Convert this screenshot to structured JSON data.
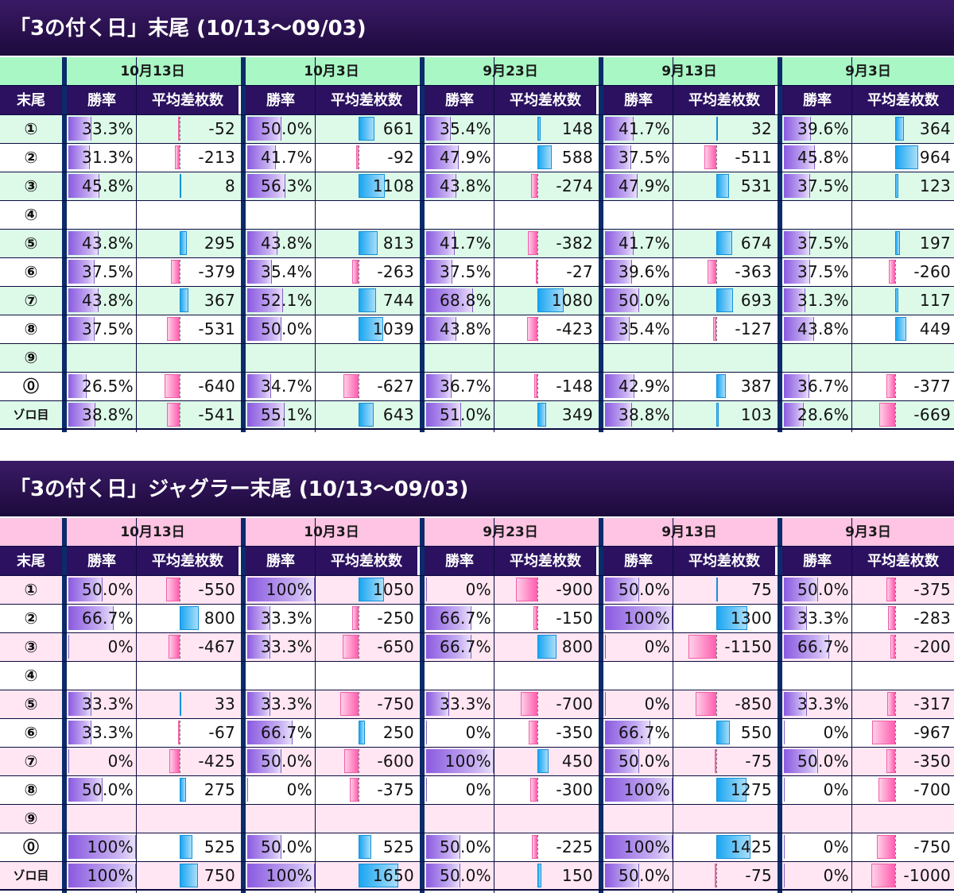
{
  "sections": [
    {
      "title": "「3の付く日」末尾 (10/13～09/03)",
      "theme": {
        "header_bg": "#a9f7c5",
        "stripe_bg": "#ddfae9"
      },
      "column_header": {
        "label": "末尾",
        "win_rate": "勝率",
        "avg_diff": "平均差枚数"
      },
      "dates": [
        "10月13日",
        "10月3日",
        "9月23日",
        "9月13日",
        "9月3日"
      ],
      "rows": [
        {
          "label": "①",
          "win_rates": [
            "33.3%",
            "50.0%",
            "35.4%",
            "41.7%",
            "39.6%"
          ],
          "diffs": [
            -52,
            661,
            148,
            32,
            364
          ]
        },
        {
          "label": "②",
          "win_rates": [
            "31.3%",
            "41.7%",
            "47.9%",
            "37.5%",
            "45.8%"
          ],
          "diffs": [
            -213,
            -92,
            588,
            -511,
            964
          ]
        },
        {
          "label": "③",
          "win_rates": [
            "45.8%",
            "56.3%",
            "43.8%",
            "47.9%",
            "37.5%"
          ],
          "diffs": [
            8,
            1108,
            -274,
            531,
            123
          ]
        },
        {
          "label": "④",
          "win_rates": [
            "",
            "",
            "",
            "",
            ""
          ],
          "diffs": [
            null,
            null,
            null,
            null,
            null
          ]
        },
        {
          "label": "⑤",
          "win_rates": [
            "43.8%",
            "43.8%",
            "41.7%",
            "41.7%",
            "37.5%"
          ],
          "diffs": [
            295,
            813,
            -382,
            674,
            197
          ]
        },
        {
          "label": "⑥",
          "win_rates": [
            "37.5%",
            "35.4%",
            "37.5%",
            "39.6%",
            "37.5%"
          ],
          "diffs": [
            -379,
            -263,
            -27,
            -363,
            -260
          ]
        },
        {
          "label": "⑦",
          "win_rates": [
            "43.8%",
            "52.1%",
            "68.8%",
            "50.0%",
            "31.3%"
          ],
          "diffs": [
            367,
            744,
            1080,
            693,
            117
          ]
        },
        {
          "label": "⑧",
          "win_rates": [
            "37.5%",
            "50.0%",
            "43.8%",
            "35.4%",
            "43.8%"
          ],
          "diffs": [
            -531,
            1039,
            -423,
            -127,
            449
          ]
        },
        {
          "label": "⑨",
          "win_rates": [
            "",
            "",
            "",
            "",
            ""
          ],
          "diffs": [
            null,
            null,
            null,
            null,
            null
          ]
        },
        {
          "label": "⓪",
          "win_rates": [
            "26.5%",
            "34.7%",
            "36.7%",
            "42.9%",
            "36.7%"
          ],
          "diffs": [
            -640,
            -627,
            -148,
            387,
            -377
          ]
        },
        {
          "label": "ゾロ目",
          "win_rates": [
            "38.8%",
            "55.1%",
            "51.0%",
            "38.8%",
            "28.6%"
          ],
          "diffs": [
            -541,
            643,
            349,
            103,
            -669
          ]
        }
      ]
    },
    {
      "title": "「3の付く日」ジャグラー末尾 (10/13～09/03)",
      "theme": {
        "header_bg": "#ffc3e3",
        "stripe_bg": "#ffe6f2"
      },
      "column_header": {
        "label": "末尾",
        "win_rate": "勝率",
        "avg_diff": "平均差枚数"
      },
      "dates": [
        "10月13日",
        "10月3日",
        "9月23日",
        "9月13日",
        "9月3日"
      ],
      "rows": [
        {
          "label": "①",
          "win_rates": [
            "50.0%",
            "100%",
            "0%",
            "50.0%",
            "50.0%"
          ],
          "diffs": [
            -550,
            1050,
            -900,
            75,
            -375
          ]
        },
        {
          "label": "②",
          "win_rates": [
            "66.7%",
            "33.3%",
            "66.7%",
            "100%",
            "33.3%"
          ],
          "diffs": [
            800,
            -250,
            -150,
            1300,
            -283
          ]
        },
        {
          "label": "③",
          "win_rates": [
            "0%",
            "33.3%",
            "66.7%",
            "0%",
            "66.7%"
          ],
          "diffs": [
            -467,
            -650,
            800,
            -1150,
            -200
          ]
        },
        {
          "label": "④",
          "win_rates": [
            "",
            "",
            "",
            "",
            ""
          ],
          "diffs": [
            null,
            null,
            null,
            null,
            null
          ]
        },
        {
          "label": "⑤",
          "win_rates": [
            "33.3%",
            "33.3%",
            "33.3%",
            "0%",
            "33.3%"
          ],
          "diffs": [
            33,
            -750,
            -700,
            -850,
            -317
          ]
        },
        {
          "label": "⑥",
          "win_rates": [
            "33.3%",
            "66.7%",
            "0%",
            "66.7%",
            "0%"
          ],
          "diffs": [
            -67,
            250,
            -350,
            550,
            -967
          ]
        },
        {
          "label": "⑦",
          "win_rates": [
            "0%",
            "50.0%",
            "100%",
            "50.0%",
            "50.0%"
          ],
          "diffs": [
            -425,
            -600,
            450,
            -75,
            -350
          ]
        },
        {
          "label": "⑧",
          "win_rates": [
            "50.0%",
            "0%",
            "0%",
            "100%",
            "0%"
          ],
          "diffs": [
            275,
            -375,
            -300,
            1275,
            -700
          ]
        },
        {
          "label": "⑨",
          "win_rates": [
            "",
            "",
            "",
            "",
            ""
          ],
          "diffs": [
            null,
            null,
            null,
            null,
            null
          ]
        },
        {
          "label": "⓪",
          "win_rates": [
            "100%",
            "50.0%",
            "50.0%",
            "100%",
            "0%"
          ],
          "diffs": [
            525,
            525,
            -225,
            1425,
            -750
          ]
        },
        {
          "label": "ゾロ目",
          "win_rates": [
            "100%",
            "100%",
            "50.0%",
            "50.0%",
            "0%"
          ],
          "diffs": [
            750,
            1650,
            150,
            -75,
            -1000
          ]
        }
      ]
    }
  ]
}
